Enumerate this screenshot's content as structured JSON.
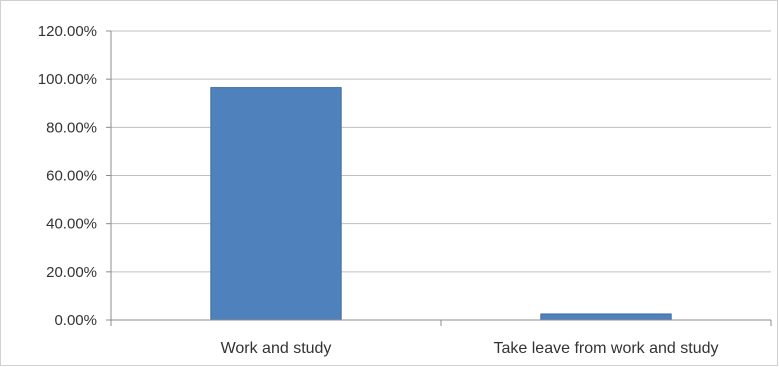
{
  "chart_data": {
    "type": "bar",
    "categories": [
      "Work and study",
      "Take leave from work and study"
    ],
    "values": [
      96.5,
      2.5
    ],
    "title": "",
    "xlabel": "",
    "ylabel": "",
    "ylim": [
      0,
      120
    ],
    "yticks": [
      "0.00%",
      "20.00%",
      "40.00%",
      "60.00%",
      "80.00%",
      "100.00%",
      "120.00%"
    ],
    "grid": true,
    "legend": "none",
    "bar_color": "#4f81bd",
    "bar_edge_color": "#3d6aa0",
    "grid_color": "#bfbfbf"
  }
}
